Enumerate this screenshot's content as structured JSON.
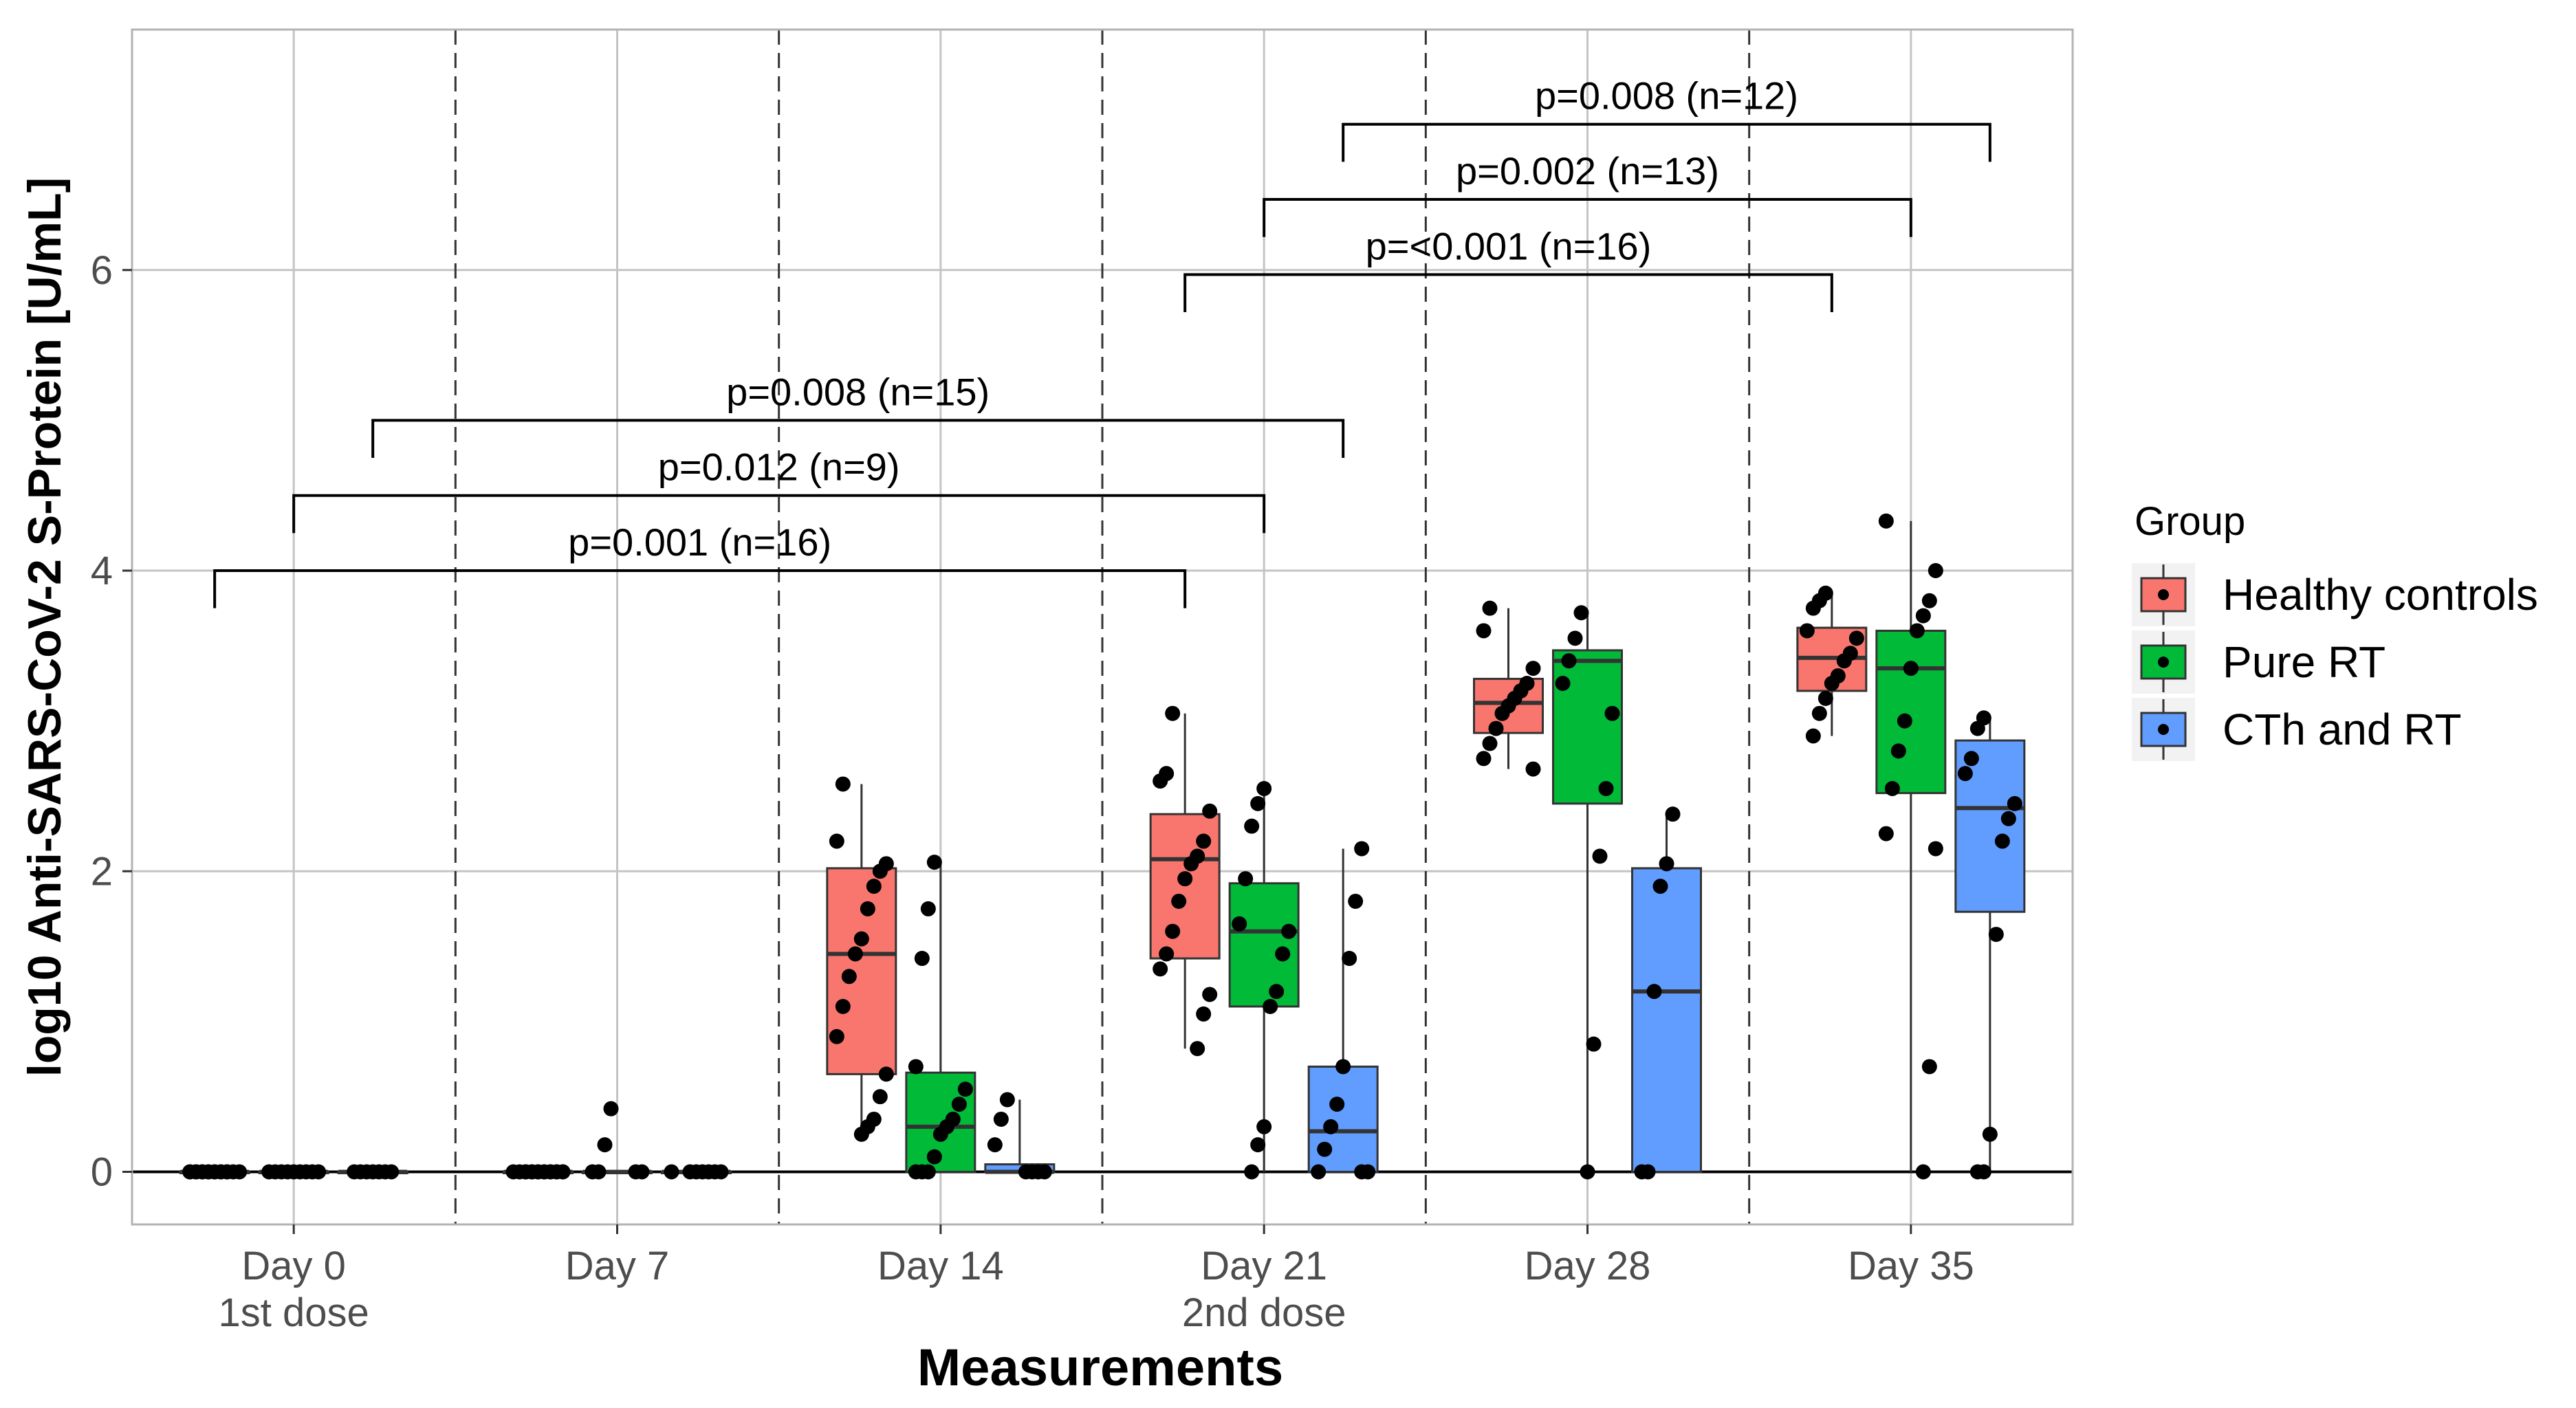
{
  "chart_data": {
    "type": "boxplot",
    "title": "",
    "xlabel": "Measurements",
    "ylabel": "log10 Anti-SARS-CoV-2 S-Protein [U/mL]",
    "ylim": [
      -0.35,
      7.6
    ],
    "yticks": [
      0,
      2,
      4,
      6
    ],
    "categories": [
      {
        "line1": "Day 0",
        "line2": "1st dose"
      },
      {
        "line1": "Day 7",
        "line2": ""
      },
      {
        "line1": "Day 14",
        "line2": ""
      },
      {
        "line1": "Day 21",
        "line2": "2nd dose"
      },
      {
        "line1": "Day 28",
        "line2": ""
      },
      {
        "line1": "Day 35",
        "line2": ""
      }
    ],
    "legend": {
      "title": "Group",
      "position": "right"
    },
    "series": [
      {
        "name": "Healthy controls",
        "color": "#F8766D",
        "boxes": [
          {
            "q1": 0,
            "median": 0,
            "q3": 0,
            "lo": 0,
            "hi": 0
          },
          {
            "q1": 0,
            "median": 0,
            "q3": 0,
            "lo": 0,
            "hi": 0
          },
          {
            "q1": 0.65,
            "median": 1.45,
            "q3": 2.02,
            "lo": 0.25,
            "hi": 2.58
          },
          {
            "q1": 1.42,
            "median": 2.08,
            "q3": 2.38,
            "lo": 0.82,
            "hi": 3.05
          },
          {
            "q1": 2.92,
            "median": 3.12,
            "q3": 3.28,
            "lo": 2.68,
            "hi": 3.75
          },
          {
            "q1": 3.2,
            "median": 3.42,
            "q3": 3.62,
            "lo": 2.9,
            "hi": 3.85
          }
        ],
        "points": [
          [
            0,
            0,
            0,
            0,
            0,
            0,
            0,
            0,
            0,
            0,
            0,
            0,
            0,
            0,
            0,
            0
          ],
          [
            0,
            0,
            0,
            0,
            0,
            0,
            0,
            0,
            0,
            0,
            0,
            0,
            0,
            0,
            0,
            0
          ],
          [
            0.25,
            0.3,
            0.35,
            0.5,
            0.65,
            0.9,
            1.1,
            1.3,
            1.45,
            1.55,
            1.75,
            1.9,
            2.0,
            2.05,
            2.2,
            2.58
          ],
          [
            0.82,
            1.05,
            1.18,
            1.35,
            1.45,
            1.6,
            1.8,
            1.95,
            2.05,
            2.1,
            2.2,
            2.4,
            2.6,
            2.65,
            3.05
          ],
          [
            2.68,
            2.75,
            2.85,
            2.95,
            3.05,
            3.1,
            3.15,
            3.2,
            3.25,
            3.35,
            3.6,
            3.75
          ],
          [
            2.9,
            3.05,
            3.15,
            3.25,
            3.3,
            3.4,
            3.45,
            3.55,
            3.6,
            3.75,
            3.8,
            3.85
          ]
        ]
      },
      {
        "name": "Pure RT",
        "color": "#00BA38",
        "boxes": [
          {
            "q1": 0,
            "median": 0,
            "q3": 0,
            "lo": 0,
            "hi": 0
          },
          {
            "q1": 0,
            "median": 0,
            "q3": 0,
            "lo": 0,
            "hi": 0
          },
          {
            "q1": 0,
            "median": 0.3,
            "q3": 0.66,
            "lo": 0,
            "hi": 2.06
          },
          {
            "q1": 1.1,
            "median": 1.6,
            "q3": 1.92,
            "lo": 0,
            "hi": 2.55
          },
          {
            "q1": 2.45,
            "median": 3.4,
            "q3": 3.47,
            "lo": 0,
            "hi": 3.72
          },
          {
            "q1": 2.52,
            "median": 3.35,
            "q3": 3.6,
            "lo": 0,
            "hi": 4.33
          }
        ],
        "points": [
          [
            0,
            0,
            0,
            0,
            0,
            0,
            0,
            0,
            0
          ],
          [
            0,
            0,
            0,
            0,
            0.18,
            0.42
          ],
          [
            0,
            0,
            0,
            0.1,
            0.25,
            0.3,
            0.35,
            0.45,
            0.55,
            0.7,
            1.42,
            1.75,
            2.06
          ],
          [
            0,
            0.18,
            0.3,
            1.1,
            1.2,
            1.45,
            1.6,
            1.65,
            1.95,
            2.3,
            2.45,
            2.55
          ],
          [
            0,
            0.85,
            2.1,
            2.55,
            3.05,
            3.25,
            3.4,
            3.55,
            3.72
          ],
          [
            0,
            0.7,
            2.15,
            2.25,
            2.55,
            2.8,
            3.0,
            3.35,
            3.6,
            3.7,
            3.8,
            4.0,
            4.33
          ]
        ]
      },
      {
        "name": "CTh and RT",
        "color": "#619CFF",
        "boxes": [
          {
            "q1": 0,
            "median": 0,
            "q3": 0,
            "lo": 0,
            "hi": 0
          },
          {
            "q1": 0,
            "median": 0,
            "q3": 0,
            "lo": 0,
            "hi": 0
          },
          {
            "q1": 0,
            "median": 0,
            "q3": 0.05,
            "lo": 0,
            "hi": 0.48
          },
          {
            "q1": 0,
            "median": 0.27,
            "q3": 0.7,
            "lo": 0,
            "hi": 2.15
          },
          {
            "q1": 0,
            "median": 1.2,
            "q3": 2.02,
            "lo": 0,
            "hi": 2.38
          },
          {
            "q1": 1.73,
            "median": 2.42,
            "q3": 2.87,
            "lo": 0,
            "hi": 3.02
          }
        ],
        "points": [
          [
            0,
            0,
            0,
            0,
            0,
            0,
            0
          ],
          [
            0,
            0,
            0,
            0,
            0,
            0,
            0
          ],
          [
            0,
            0,
            0,
            0,
            0.18,
            0.35,
            0.48
          ],
          [
            0,
            0,
            0,
            0.15,
            0.3,
            0.45,
            0.7,
            1.42,
            1.8,
            2.15
          ],
          [
            0,
            0,
            1.2,
            1.9,
            2.05,
            2.38
          ],
          [
            0,
            0,
            0.25,
            1.58,
            2.2,
            2.35,
            2.45,
            2.65,
            2.75,
            2.95,
            3.02
          ]
        ]
      }
    ],
    "comparisons": [
      {
        "label": "p=0.001 (n=16)",
        "from": {
          "category": 0,
          "group": 0
        },
        "to": {
          "category": 3,
          "group": 0
        },
        "y": 4.0,
        "tip": 3.75
      },
      {
        "label": "p=0.012 (n=9)",
        "from": {
          "category": 0,
          "group": 1
        },
        "to": {
          "category": 3,
          "group": 1
        },
        "y": 4.5,
        "tip": 4.25
      },
      {
        "label": "p=0.008 (n=15)",
        "from": {
          "category": 0,
          "group": 2
        },
        "to": {
          "category": 3,
          "group": 2
        },
        "y": 5.0,
        "tip": 4.75
      },
      {
        "label": "p=<0.001 (n=16)",
        "from": {
          "category": 3,
          "group": 0
        },
        "to": {
          "category": 5,
          "group": 0
        },
        "y": 5.97,
        "tip": 5.72
      },
      {
        "label": "p=0.002 (n=13)",
        "from": {
          "category": 3,
          "group": 1
        },
        "to": {
          "category": 5,
          "group": 1
        },
        "y": 6.47,
        "tip": 6.22
      },
      {
        "label": "p=0.008 (n=12)",
        "from": {
          "category": 3,
          "group": 2
        },
        "to": {
          "category": 5,
          "group": 2
        },
        "y": 6.97,
        "tip": 6.72
      }
    ]
  }
}
